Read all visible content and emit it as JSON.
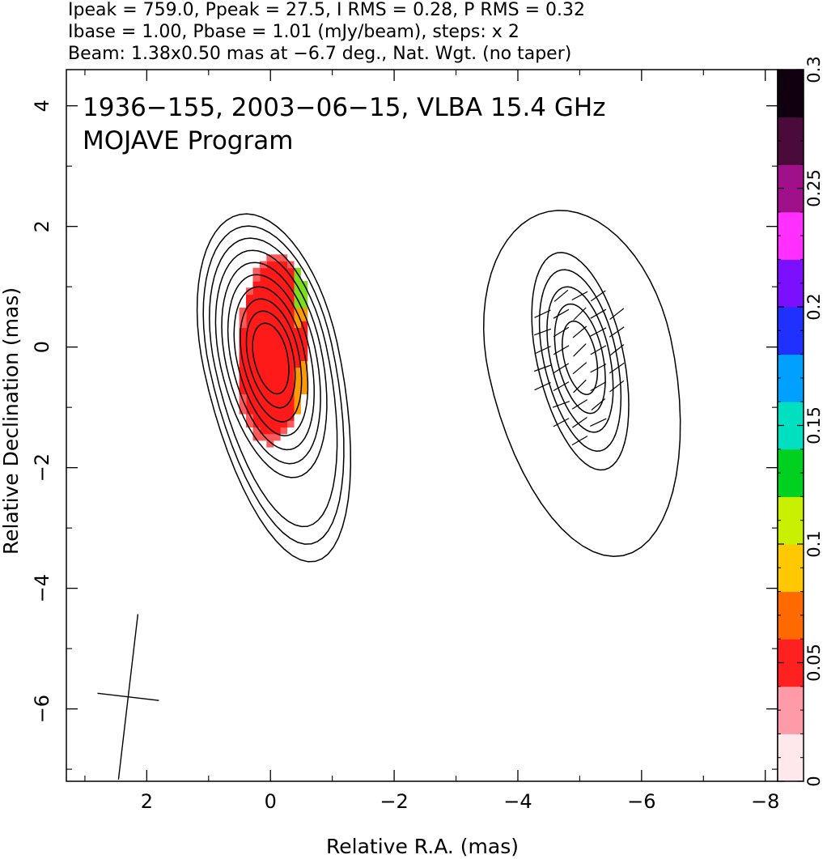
{
  "header": {
    "line1": "Ipeak = 759.0, Ppeak = 27.5, I RMS = 0.28, P RMS = 0.32",
    "line2": "Ibase = 1.00, Pbase = 1.01 (mJy/beam), steps: x 2",
    "line3": "Beam: 1.38x0.50 mas at −6.7 deg., Nat. Wgt. (no taper)"
  },
  "chart_data": {
    "type": "heatmap",
    "title": "1936−155, 2003−06−15, VLBA 15.4 GHz",
    "subtitle": "MOJAVE Program",
    "xlabel": "Relative R.A. (mas)",
    "ylabel": "Relative Declination (mas)",
    "xlim": [
      3.3,
      -8.2
    ],
    "ylim": [
      -7.2,
      4.6
    ],
    "xticks": [
      2,
      0,
      -2,
      -4,
      -6,
      -8
    ],
    "xtick_labels": [
      "2",
      "0",
      "−2",
      "−4",
      "−6",
      "−8"
    ],
    "yticks": [
      4,
      2,
      0,
      -2,
      -4,
      -6
    ],
    "ytick_labels": [
      "4",
      "2",
      "0",
      "−2",
      "−4",
      "−6"
    ],
    "grid": false,
    "stokes_I": {
      "peak_mJy_per_beam": 759.0,
      "rms": 0.28,
      "base_contour": 1.0,
      "contour_step_factor": 2,
      "contour_levels": [
        1,
        2,
        4,
        8,
        16,
        32,
        64,
        128,
        256,
        512
      ],
      "peak_position": [
        0,
        0
      ]
    },
    "polarization": {
      "peak_mJy_per_beam": 27.5,
      "rms": 0.32,
      "base_contour": 1.01,
      "contour_levels": [
        1.01,
        2.02,
        4.04,
        8.08,
        16.16
      ],
      "fractional_pol_region": {
        "ra": [
          0.55,
          -0.65
        ],
        "dec": [
          -1.6,
          1.55
        ],
        "typical_value": 0.04
      },
      "evpa_sticks_deg": [
        30,
        25,
        35,
        28,
        40,
        32,
        20,
        38,
        30,
        45
      ]
    },
    "beam": {
      "major_mas": 1.38,
      "minor_mas": 0.5,
      "pa_deg": -6.7,
      "weighting": "Nat. Wgt. (no taper)",
      "center": [
        2.3,
        -5.8
      ]
    },
    "panel_offset_ra": -5.0,
    "colorbar": {
      "min": 0,
      "max": 0.3,
      "ticks": [
        0,
        0.05,
        0.1,
        0.15,
        0.2,
        0.25,
        0.3
      ],
      "tick_labels": [
        "0",
        "0.05",
        "0.1",
        "0.15",
        "0.2",
        "0.25",
        "0.3"
      ],
      "colors": [
        "#ffe8ec",
        "#ff9aa8",
        "#ff2020",
        "#ff6a00",
        "#ffc800",
        "#c8f000",
        "#00d020",
        "#00e0c0",
        "#00a0ff",
        "#2030ff",
        "#7a10ff",
        "#ff30ff",
        "#a0108a",
        "#4a0a3a",
        "#100010"
      ]
    }
  }
}
